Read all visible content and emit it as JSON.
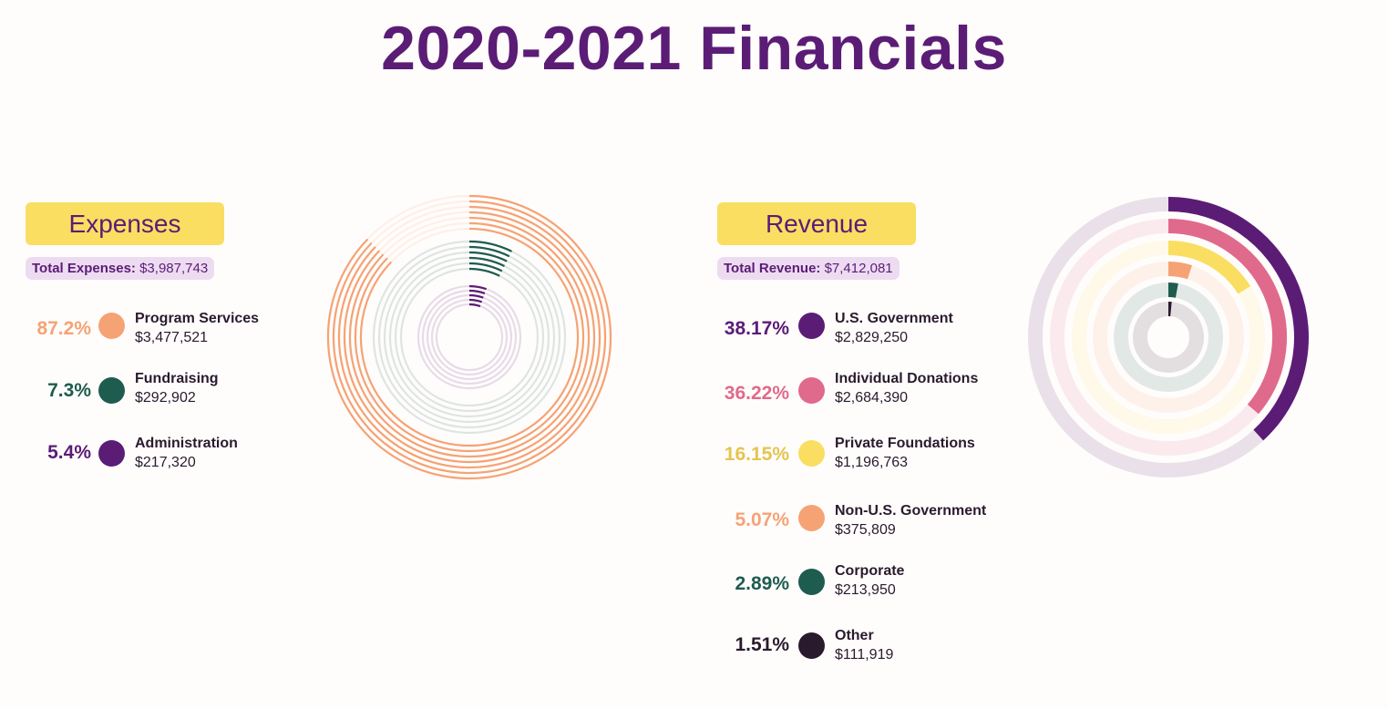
{
  "page": {
    "title": "2020-2021 Financials"
  },
  "expenses": {
    "heading": "Expenses",
    "total_label": "Total Expenses:",
    "total_value": "$3,987,743",
    "items": [
      {
        "pct": "87.2%",
        "name": "Program Services",
        "amount": "$3,477,521",
        "color": "#f5a375"
      },
      {
        "pct": "7.3%",
        "name": "Fundraising",
        "amount": "$292,902",
        "color": "#1e5c4f"
      },
      {
        "pct": "5.4%",
        "name": "Administration",
        "amount": "$217,320",
        "color": "#5b1c76"
      }
    ]
  },
  "revenue": {
    "heading": "Revenue",
    "total_label": "Total Revenue:",
    "total_value": "$7,412,081",
    "items": [
      {
        "pct": "38.17%",
        "name": "U.S. Government",
        "amount": "$2,829,250",
        "color": "#5b1c76"
      },
      {
        "pct": "36.22%",
        "name": "Individual Donations",
        "amount": "$2,684,390",
        "color": "#e06a8c"
      },
      {
        "pct": "16.15%",
        "name": "Private Foundations",
        "amount": "$1,196,763",
        "color": "#f9de62"
      },
      {
        "pct": "5.07%",
        "name": "Non-U.S. Government",
        "amount": "$375,809",
        "color": "#f5a375"
      },
      {
        "pct": "2.89%",
        "name": "Corporate",
        "amount": "$213,950",
        "color": "#1e5c4f"
      },
      {
        "pct": "1.51%",
        "name": "Other",
        "amount": "$111,919",
        "color": "#2a1a2e"
      }
    ]
  },
  "chart_data": [
    {
      "type": "radial-bar",
      "title": "Expenses",
      "categories": [
        "Program Services",
        "Fundraising",
        "Administration"
      ],
      "values": [
        87.2,
        7.3,
        5.4
      ],
      "unit": "%",
      "colors": [
        "#f5a375",
        "#1e5c4f",
        "#5b1c76"
      ]
    },
    {
      "type": "radial-bar",
      "title": "Revenue",
      "categories": [
        "U.S. Government",
        "Individual Donations",
        "Private Foundations",
        "Non-U.S. Government",
        "Corporate",
        "Other"
      ],
      "values": [
        38.17,
        36.22,
        16.15,
        5.07,
        2.89,
        1.51
      ],
      "unit": "%",
      "colors": [
        "#5b1c76",
        "#e06a8c",
        "#f9de62",
        "#f5a375",
        "#1e5c4f",
        "#2a1a2e"
      ]
    }
  ]
}
